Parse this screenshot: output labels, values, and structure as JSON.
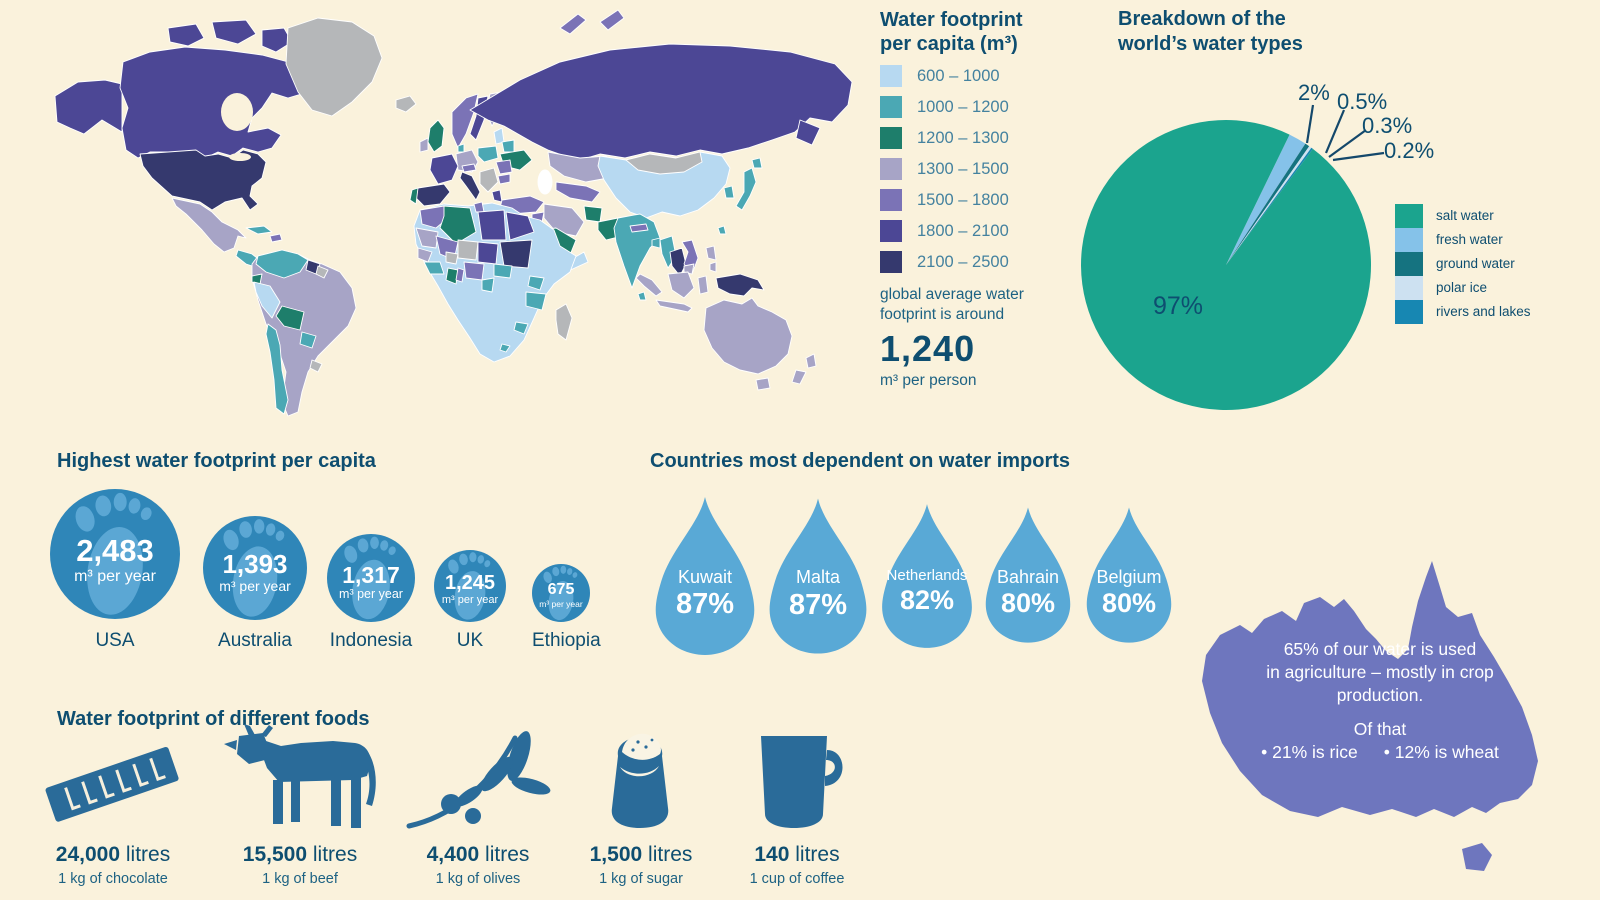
{
  "colors": {
    "background": "#FAF2DC",
    "ink": "#0E4E70",
    "legend_label": "#44829F",
    "no_data_gray": "#B5B7B9",
    "footprint_circle": "#2F86B8",
    "footprint_foot": "#5BA7D4",
    "water_drop": "#59A9D6",
    "food_icon": "#2A6B99",
    "australia_fill": "#6E76BE"
  },
  "map_legend": {
    "title_line1": "Water footprint",
    "title_line2": "per capita (m³)",
    "bins": [
      {
        "range": "600 – 1000",
        "color": "#B7D9F1"
      },
      {
        "range": "1000 – 1200",
        "color": "#4BA8B4"
      },
      {
        "range": "1200 – 1300",
        "color": "#1E7E6B"
      },
      {
        "range": "1300 – 1500",
        "color": "#A7A4C6"
      },
      {
        "range": "1500 – 1800",
        "color": "#7B73B6"
      },
      {
        "range": "1800 – 2100",
        "color": "#4C4795"
      },
      {
        "range": "2100 – 2500",
        "color": "#35396E"
      }
    ],
    "note_line1": "global average water",
    "note_line2": "footprint is around",
    "average_value": "1,240",
    "average_unit": "m³ per person"
  },
  "pie_section": {
    "title_line1": "Breakdown of the",
    "title_line2": "world’s water types",
    "inside_label": "97%",
    "callouts": [
      "2%",
      "0.5%",
      "0.3%",
      "0.2%"
    ],
    "legend": [
      {
        "label": "salt water",
        "color": "#1BA48E"
      },
      {
        "label": "fresh water",
        "color": "#85C2E9"
      },
      {
        "label": "ground water",
        "color": "#157380"
      },
      {
        "label": "polar ice",
        "color": "#CDE1F1"
      },
      {
        "label": "rivers and lakes",
        "color": "#1787B2"
      }
    ]
  },
  "chart_data": [
    {
      "type": "pie",
      "title": "Breakdown of the world’s water types",
      "labels": [
        "salt water",
        "fresh water",
        "ground water",
        "polar ice",
        "rivers and lakes"
      ],
      "values": [
        97,
        2,
        0.5,
        0.3,
        0.2
      ],
      "colors": [
        "#1BA48E",
        "#85C2E9",
        "#157380",
        "#CDE1F1",
        "#1787B2"
      ],
      "data_labels": [
        "97%",
        "2%",
        "0.5%",
        "0.3%",
        "0.2%"
      ],
      "legend_position": "right",
      "start_angle_deg": 26
    },
    {
      "type": "heatmap",
      "subtype": "world-choropleth",
      "title": "Water footprint per capita (m³)",
      "bins": [
        "600 – 1000",
        "1000 – 1200",
        "1200 – 1300",
        "1300 – 1500",
        "1500 – 1800",
        "1800 – 2100",
        "2100 – 2500"
      ],
      "bin_colors": [
        "#B7D9F1",
        "#4BA8B4",
        "#1E7E6B",
        "#A7A4C6",
        "#7B73B6",
        "#4C4795",
        "#35396E"
      ],
      "no_data_color": "#B5B7B9",
      "global_average": {
        "value": 1240,
        "unit": "m³ per person"
      },
      "sample_countries": {
        "USA": "2100 – 2500",
        "Canada": "1800 – 2100",
        "Russia": "1800 – 2100",
        "Greenland": "no data",
        "Mongolia": "no data",
        "China": "600 – 1000",
        "India": "1000 – 1200",
        "Japan": "1000 – 1200",
        "Australia": "1300 – 1500",
        "Brazil": "1300 – 1500",
        "Mexico": "1300 – 1500",
        "Spain": "2100 – 2500",
        "Italy": "2100 – 2500",
        "Thailand": "2100 – 2500",
        "Sudan": "2100 – 2500",
        "Papua New Guinea": "2100 – 2500",
        "UK": "1200 – 1300",
        "Saudi Arabia": "1200 – 1300",
        "Algeria": "1200 – 1300",
        "Bolivia": "1200 – 1300",
        "France": "1800 – 2100",
        "Peru": "600 – 1000",
        "South Africa": "600 – 1000",
        "Ethiopia": "600 – 1000"
      }
    },
    {
      "type": "bar",
      "title": "Highest water footprint per capita",
      "categories": [
        "USA",
        "Australia",
        "Indonesia",
        "UK",
        "Ethiopia"
      ],
      "values": [
        2483,
        1393,
        1317,
        1245,
        675
      ],
      "unit": "m³ per year"
    },
    {
      "type": "bar",
      "title": "Countries most dependent on water imports",
      "categories": [
        "Kuwait",
        "Malta",
        "Netherlands",
        "Bahrain",
        "Belgium"
      ],
      "values": [
        87,
        87,
        82,
        80,
        80
      ],
      "unit": "%"
    },
    {
      "type": "bar",
      "title": "Water footprint of different foods",
      "categories": [
        "1 kg of chocolate",
        "1 kg of beef",
        "1 kg of olives",
        "1 kg of sugar",
        "1 cup of coffee"
      ],
      "values": [
        24000,
        15500,
        4400,
        1500,
        140
      ],
      "unit": "litres"
    }
  ],
  "footprints": {
    "heading": "Highest water footprint per capita",
    "unit": "m³ per year",
    "items": [
      {
        "country": "USA",
        "value": "2,483",
        "unit": "m³ per year"
      },
      {
        "country": "Australia",
        "value": "1,393",
        "unit": "m³ per year"
      },
      {
        "country": "Indonesia",
        "value": "1,317",
        "unit": "m³ per year"
      },
      {
        "country": "UK",
        "value": "1,245",
        "unit": "m³ per year"
      },
      {
        "country": "Ethiopia",
        "value": "675",
        "unit": "m³ per year"
      }
    ]
  },
  "imports": {
    "heading": "Countries most dependent on water imports",
    "items": [
      {
        "country": "Kuwait",
        "value": "87%"
      },
      {
        "country": "Malta",
        "value": "87%"
      },
      {
        "country": "Netherlands",
        "value": "82%"
      },
      {
        "country": "Bahrain",
        "value": "80%"
      },
      {
        "country": "Belgium",
        "value": "80%"
      }
    ]
  },
  "foods": {
    "heading": "Water footprint of different foods",
    "items": [
      {
        "icon": "chocolate-bar-icon",
        "value": "24,000",
        "unit": "litres",
        "desc": "1 kg of chocolate"
      },
      {
        "icon": "cow-icon",
        "value": "15,500",
        "unit": "litres",
        "desc": "1 kg of beef"
      },
      {
        "icon": "olive-branch-icon",
        "value": "4,400",
        "unit": "litres",
        "desc": "1 kg of olives"
      },
      {
        "icon": "sugar-sack-icon",
        "value": "1,500",
        "unit": "litres",
        "desc": "1 kg of sugar"
      },
      {
        "icon": "coffee-mug-icon",
        "value": "140",
        "unit": "litres",
        "desc": "1 cup of coffee"
      }
    ]
  },
  "australia": {
    "line1": "65% of our water is used",
    "line2": "in agriculture – mostly in crop",
    "line3": "production.",
    "line4": "Of that",
    "bullet1": "• 21% is rice",
    "bullet2": "• 12% is wheat"
  }
}
